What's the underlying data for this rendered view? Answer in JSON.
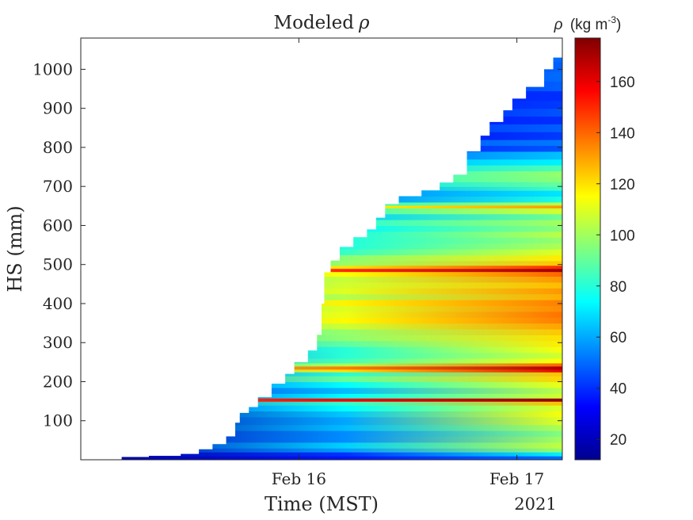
{
  "chart_data": {
    "type": "heatmap",
    "title": "Modeled",
    "title_symbol": "ρ",
    "xlabel": "Time (MST)",
    "ylabel": "HS (mm)",
    "year_label": "2021",
    "x_ticks": [
      {
        "label": "Feb 16",
        "hours": 24
      },
      {
        "label": "Feb 17",
        "hours": 48
      }
    ],
    "x_range_hours": [
      0,
      53
    ],
    "ylim": [
      0,
      1080
    ],
    "y_ticks": [
      100,
      200,
      300,
      400,
      500,
      600,
      700,
      800,
      900,
      1000
    ],
    "colorbar": {
      "label_symbol": "ρ",
      "label_units": "(kg m",
      "label_exponent": "-3",
      "label_close": ")",
      "range": [
        12,
        177
      ],
      "ticks": [
        20,
        40,
        60,
        80,
        100,
        120,
        140,
        160
      ],
      "colormap": "jet"
    },
    "snow_height_profile": [
      {
        "hours": 4.5,
        "hs": 7
      },
      {
        "hours": 7.5,
        "hs": 10
      },
      {
        "hours": 11,
        "hs": 15
      },
      {
        "hours": 13,
        "hs": 27
      },
      {
        "hours": 14.5,
        "hs": 40
      },
      {
        "hours": 16,
        "hs": 60
      },
      {
        "hours": 17,
        "hs": 95
      },
      {
        "hours": 17.5,
        "hs": 120
      },
      {
        "hours": 18.5,
        "hs": 135
      },
      {
        "hours": 19.5,
        "hs": 160
      },
      {
        "hours": 21,
        "hs": 195
      },
      {
        "hours": 22.5,
        "hs": 220
      },
      {
        "hours": 23.5,
        "hs": 250
      },
      {
        "hours": 25,
        "hs": 280
      },
      {
        "hours": 26,
        "hs": 320
      },
      {
        "hours": 26.5,
        "hs": 400
      },
      {
        "hours": 26.8,
        "hs": 480
      },
      {
        "hours": 27.5,
        "hs": 510
      },
      {
        "hours": 28.5,
        "hs": 545
      },
      {
        "hours": 30,
        "hs": 570
      },
      {
        "hours": 31.5,
        "hs": 590
      },
      {
        "hours": 32.5,
        "hs": 620
      },
      {
        "hours": 33.5,
        "hs": 655
      },
      {
        "hours": 35,
        "hs": 675
      },
      {
        "hours": 37.5,
        "hs": 690
      },
      {
        "hours": 39.5,
        "hs": 710
      },
      {
        "hours": 41,
        "hs": 730
      },
      {
        "hours": 42.5,
        "hs": 790
      },
      {
        "hours": 44,
        "hs": 830
      },
      {
        "hours": 45,
        "hs": 865
      },
      {
        "hours": 46.5,
        "hs": 895
      },
      {
        "hours": 47.5,
        "hs": 925
      },
      {
        "hours": 49,
        "hs": 955
      },
      {
        "hours": 51,
        "hs": 1000
      },
      {
        "hours": 52,
        "hs": 1030
      },
      {
        "hours": 53,
        "hs": 1075
      }
    ],
    "density_layers": [
      {
        "top": 10,
        "start": 14,
        "end": 50
      },
      {
        "top": 20,
        "start": 15,
        "end": 72
      },
      {
        "top": 30,
        "start": 18,
        "end": 98
      },
      {
        "top": 45,
        "start": 20,
        "end": 105
      },
      {
        "top": 60,
        "start": 17,
        "end": 100
      },
      {
        "top": 75,
        "start": 16,
        "end": 95
      },
      {
        "top": 90,
        "start": 16,
        "end": 102
      },
      {
        "top": 110,
        "start": 15,
        "end": 110
      },
      {
        "top": 125,
        "start": 16,
        "end": 114
      },
      {
        "top": 140,
        "start": 30,
        "end": 110
      },
      {
        "top": 150,
        "start": 45,
        "end": 125
      },
      {
        "top": 158,
        "start": 140,
        "end": 175
      },
      {
        "top": 170,
        "start": 32,
        "end": 108
      },
      {
        "top": 185,
        "start": 28,
        "end": 104
      },
      {
        "top": 200,
        "start": 36,
        "end": 112
      },
      {
        "top": 215,
        "start": 50,
        "end": 122
      },
      {
        "top": 225,
        "start": 40,
        "end": 125
      },
      {
        "top": 232,
        "start": 80,
        "end": 160
      },
      {
        "top": 240,
        "start": 95,
        "end": 170
      },
      {
        "top": 248,
        "start": 70,
        "end": 140
      },
      {
        "top": 260,
        "start": 55,
        "end": 115
      },
      {
        "top": 275,
        "start": 45,
        "end": 108
      },
      {
        "top": 290,
        "start": 52,
        "end": 114
      },
      {
        "top": 305,
        "start": 60,
        "end": 118
      },
      {
        "top": 320,
        "start": 66,
        "end": 120
      },
      {
        "top": 335,
        "start": 78,
        "end": 124
      },
      {
        "top": 350,
        "start": 84,
        "end": 130
      },
      {
        "top": 365,
        "start": 88,
        "end": 136
      },
      {
        "top": 380,
        "start": 92,
        "end": 138
      },
      {
        "top": 395,
        "start": 86,
        "end": 134
      },
      {
        "top": 410,
        "start": 90,
        "end": 136
      },
      {
        "top": 425,
        "start": 84,
        "end": 128
      },
      {
        "top": 440,
        "start": 88,
        "end": 132
      },
      {
        "top": 455,
        "start": 82,
        "end": 126
      },
      {
        "top": 470,
        "start": 86,
        "end": 132
      },
      {
        "top": 482,
        "start": 90,
        "end": 140
      },
      {
        "top": 490,
        "start": 120,
        "end": 172
      },
      {
        "top": 498,
        "start": 95,
        "end": 150
      },
      {
        "top": 510,
        "start": 72,
        "end": 124
      },
      {
        "top": 525,
        "start": 66,
        "end": 118
      },
      {
        "top": 540,
        "start": 62,
        "end": 110
      },
      {
        "top": 555,
        "start": 56,
        "end": 102
      },
      {
        "top": 570,
        "start": 52,
        "end": 98
      },
      {
        "top": 585,
        "start": 58,
        "end": 104
      },
      {
        "top": 600,
        "start": 50,
        "end": 96
      },
      {
        "top": 615,
        "start": 54,
        "end": 100
      },
      {
        "top": 630,
        "start": 48,
        "end": 92
      },
      {
        "top": 645,
        "start": 60,
        "end": 108
      },
      {
        "top": 652,
        "start": 92,
        "end": 132
      },
      {
        "top": 660,
        "start": 58,
        "end": 104
      },
      {
        "top": 675,
        "start": 32,
        "end": 78
      },
      {
        "top": 690,
        "start": 30,
        "end": 70
      },
      {
        "top": 700,
        "start": 44,
        "end": 84
      },
      {
        "top": 712,
        "start": 50,
        "end": 90
      },
      {
        "top": 725,
        "start": 56,
        "end": 96
      },
      {
        "top": 740,
        "start": 62,
        "end": 98
      },
      {
        "top": 755,
        "start": 52,
        "end": 86
      },
      {
        "top": 770,
        "start": 44,
        "end": 72
      },
      {
        "top": 790,
        "start": 38,
        "end": 64
      },
      {
        "top": 805,
        "start": 26,
        "end": 46
      },
      {
        "top": 820,
        "start": 30,
        "end": 52
      },
      {
        "top": 840,
        "start": 24,
        "end": 42
      },
      {
        "top": 860,
        "start": 28,
        "end": 48
      },
      {
        "top": 880,
        "start": 22,
        "end": 40
      },
      {
        "top": 900,
        "start": 30,
        "end": 46
      },
      {
        "top": 920,
        "start": 26,
        "end": 42
      },
      {
        "top": 945,
        "start": 24,
        "end": 40
      },
      {
        "top": 970,
        "start": 30,
        "end": 48
      },
      {
        "top": 995,
        "start": 32,
        "end": 50
      },
      {
        "top": 1020,
        "start": 36,
        "end": 48
      },
      {
        "top": 1050,
        "start": 40,
        "end": 50
      },
      {
        "top": 1080,
        "start": 44,
        "end": 52
      }
    ]
  }
}
